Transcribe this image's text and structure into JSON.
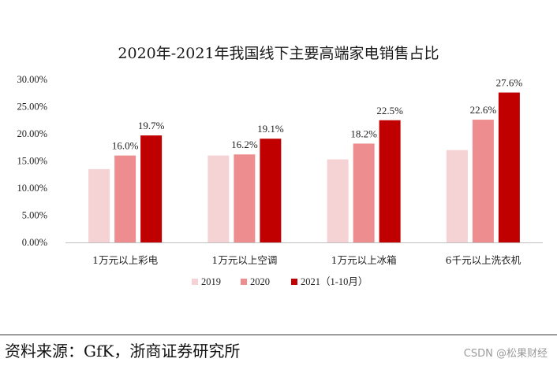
{
  "chart_data": {
    "type": "bar",
    "title": "2020年-2021年我国线下主要高端家电销售占比",
    "categories": [
      "1万元以上彩电",
      "1万元以上空调",
      "1万元以上冰箱",
      "6千元以上洗衣机"
    ],
    "series": [
      {
        "name": "2019",
        "values": [
          13.5,
          16.0,
          15.3,
          17.0
        ],
        "labels": [
          "",
          "",
          "",
          ""
        ],
        "color": "#f5d2d3"
      },
      {
        "name": "2020",
        "values": [
          16.0,
          16.2,
          18.2,
          22.6
        ],
        "labels": [
          "16.0%",
          "16.2%",
          "18.2%",
          "22.6%"
        ],
        "color": "#ee8d8f"
      },
      {
        "name": "2021（1-10月）",
        "values": [
          19.7,
          19.1,
          22.5,
          27.6
        ],
        "labels": [
          "19.7%",
          "19.1%",
          "22.5%",
          "27.6%"
        ],
        "color": "#c00000"
      }
    ],
    "yticks": [
      "0.00%",
      "5.00%",
      "10.00%",
      "15.00%",
      "20.00%",
      "25.00%",
      "30.00%"
    ],
    "ylim": [
      0,
      30
    ],
    "xlabel": "",
    "ylabel": "",
    "grid": false,
    "legend_position": "bottom-center"
  },
  "footer": {
    "source": "资料来源：GfK，浙商证券研究所",
    "watermark": "CSDN @松果财经"
  }
}
